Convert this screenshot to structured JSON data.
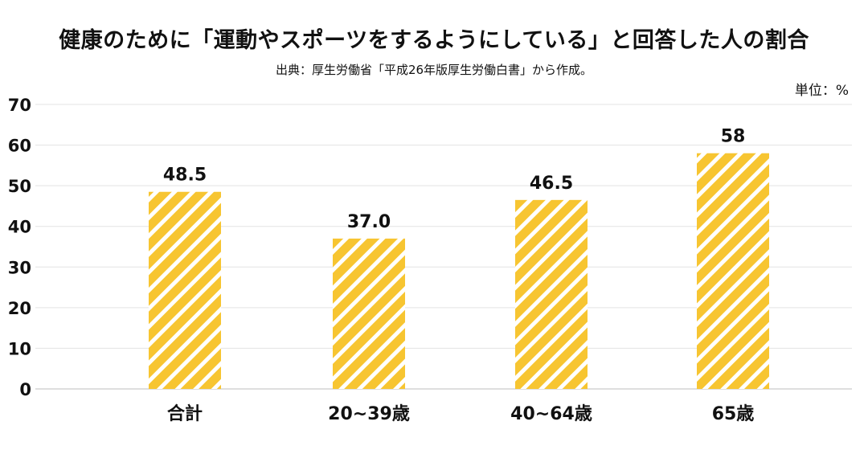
{
  "chart_data": {
    "type": "bar",
    "title": "健康のために「運動やスポーツをするようにしている」と回答した人の割合",
    "subtitle": "出典：厚生労働省「平成26年版厚生労働白書」から作成。",
    "unit_label": "単位：%",
    "categories": [
      "合計",
      "20~39歳",
      "40~64歳",
      "65歳"
    ],
    "values": [
      48.5,
      37.0,
      46.5,
      58
    ],
    "value_labels": [
      "48.5",
      "37.0",
      "46.5",
      "58"
    ],
    "ylim": [
      0,
      70
    ],
    "yticks": [
      "0",
      "10",
      "20",
      "30",
      "40",
      "50",
      "60",
      "70"
    ],
    "grid": true,
    "bar_color": "#F7C531",
    "stripe_color": "#ffffff"
  }
}
